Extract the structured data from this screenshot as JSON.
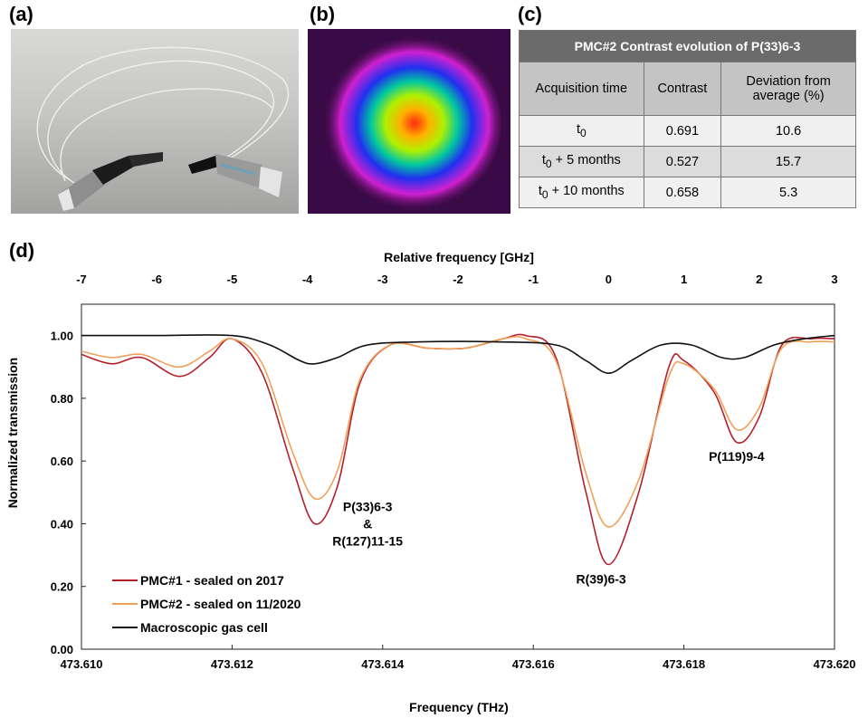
{
  "panels": {
    "a": "(a)",
    "b": "(b)",
    "c": "(c)",
    "d": "(d)"
  },
  "table": {
    "title": "PMC#2 Contrast evolution of  P(33)6-3",
    "headers": [
      "Acquisition time",
      "Contrast",
      "Deviation from average (%)"
    ],
    "rows": [
      {
        "time_base": "t",
        "time_sub": "0",
        "time_suffix": "",
        "contrast": "0.691",
        "deviation": "10.6"
      },
      {
        "time_base": "t",
        "time_sub": "0",
        "time_suffix": " + 5 months",
        "contrast": "0.527",
        "deviation": "15.7"
      },
      {
        "time_base": "t",
        "time_sub": "0",
        "time_suffix": " + 10 months",
        "contrast": "0.658",
        "deviation": "5.3"
      }
    ]
  },
  "chart_data": {
    "type": "line",
    "xlabel": "Frequency (THz)",
    "x2label": "Relative frequency [GHz]",
    "ylabel": "Normalized transmission",
    "xlim": [
      473.61,
      473.62
    ],
    "x2lim": [
      -7,
      3
    ],
    "ylim": [
      0.0,
      1.1
    ],
    "x_ticks": [
      "473.610",
      "473.612",
      "473.614",
      "473.616",
      "473.618",
      "473.620"
    ],
    "x2_ticks": [
      "-7",
      "-6",
      "-5",
      "-4",
      "-3",
      "-2",
      "-1",
      "0",
      "1",
      "2",
      "3"
    ],
    "y_ticks": [
      "0.00",
      "0.20",
      "0.40",
      "0.60",
      "0.80",
      "1.00"
    ],
    "grid": false,
    "legend_position": "bottom-left",
    "series": [
      {
        "name": "PMC#1 - sealed on 2017",
        "color": "#b3202a",
        "x": [
          473.61,
          473.6104,
          473.6108,
          473.6113,
          473.6117,
          473.612,
          473.6124,
          473.6128,
          473.6131,
          473.6134,
          473.6137,
          473.6141,
          473.6146,
          473.6151,
          473.6156,
          473.6159,
          473.6163,
          473.6167,
          473.617,
          473.6174,
          473.6178,
          473.618,
          473.6184,
          473.6187,
          473.619,
          473.6193,
          473.6197,
          473.62
        ],
        "y": [
          0.94,
          0.91,
          0.93,
          0.87,
          0.93,
          0.99,
          0.88,
          0.58,
          0.4,
          0.52,
          0.85,
          0.97,
          0.96,
          0.96,
          0.99,
          1.0,
          0.93,
          0.5,
          0.27,
          0.5,
          0.9,
          0.92,
          0.82,
          0.66,
          0.74,
          0.97,
          0.99,
          0.99
        ]
      },
      {
        "name": "PMC#2 - sealed on 11/2020",
        "color": "#f0a058",
        "x": [
          473.61,
          473.6104,
          473.6108,
          473.6113,
          473.6117,
          473.612,
          473.6124,
          473.6128,
          473.6131,
          473.6134,
          473.6137,
          473.6141,
          473.6146,
          473.6151,
          473.6156,
          473.6159,
          473.6163,
          473.6167,
          473.617,
          473.6174,
          473.6178,
          473.618,
          473.6184,
          473.6187,
          473.619,
          473.6193,
          473.6197,
          473.62
        ],
        "y": [
          0.95,
          0.93,
          0.94,
          0.9,
          0.95,
          0.99,
          0.91,
          0.63,
          0.48,
          0.57,
          0.86,
          0.97,
          0.96,
          0.96,
          0.99,
          0.99,
          0.92,
          0.56,
          0.39,
          0.54,
          0.87,
          0.91,
          0.83,
          0.7,
          0.77,
          0.96,
          0.98,
          0.98
        ]
      },
      {
        "name": "Macroscopic gas cell",
        "color": "#111111",
        "x": [
          473.61,
          473.611,
          473.612,
          473.6125,
          473.6129,
          473.6131,
          473.6134,
          473.6138,
          473.6145,
          473.6155,
          473.6163,
          473.6167,
          473.617,
          473.6173,
          473.6177,
          473.6181,
          473.6185,
          473.6188,
          473.6192,
          473.6196,
          473.62
        ],
        "y": [
          1.0,
          1.0,
          1.0,
          0.97,
          0.92,
          0.91,
          0.93,
          0.97,
          0.98,
          0.98,
          0.97,
          0.92,
          0.88,
          0.92,
          0.97,
          0.97,
          0.93,
          0.93,
          0.97,
          0.99,
          1.0
        ]
      }
    ],
    "annotations": [
      {
        "lines": [
          "P(33)6-3",
          "&",
          "R(127)11-15"
        ],
        "x": 473.6138,
        "y": 0.44
      },
      {
        "lines": [
          "R(39)6-3"
        ],
        "x": 473.6169,
        "y": 0.21
      },
      {
        "lines": [
          "P(119)9-4"
        ],
        "x": 473.6187,
        "y": 0.6
      }
    ]
  }
}
